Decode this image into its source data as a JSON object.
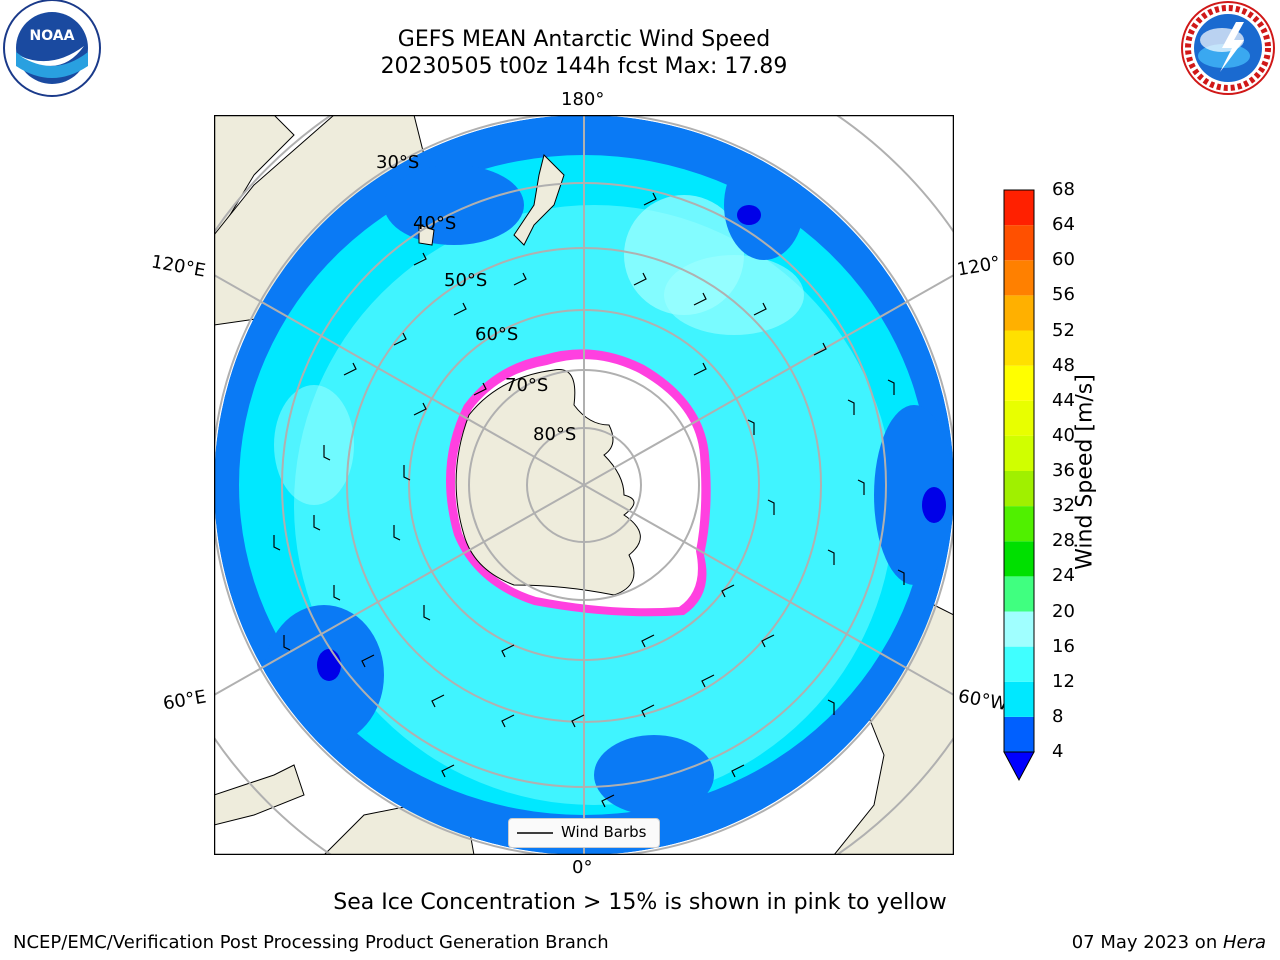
{
  "title": {
    "line1": "GEFS MEAN Antarctic Wind Speed",
    "line2": "20230505 t00z 144h fcst   Max: 17.89"
  },
  "map": {
    "projection": "south-polar-stereographic",
    "longitude_labels": {
      "top": "180°",
      "bottom": "0°",
      "left_upper": "120°E",
      "left_lower": "60°E",
      "right_upper": "120°",
      "right_lower": "60°W"
    },
    "latitude_labels": [
      "30°S",
      "40°S",
      "50°S",
      "60°S",
      "70°S",
      "80°S"
    ],
    "legend": {
      "label": "Wind Barbs"
    }
  },
  "colorbar": {
    "label": "Wind Speed [m/s]",
    "ticks": [
      "4",
      "8",
      "12",
      "16",
      "20",
      "24",
      "28",
      "32",
      "36",
      "40",
      "44",
      "48",
      "52",
      "56",
      "60",
      "64",
      "68"
    ],
    "colors": [
      "#0060ff",
      "#00e8ff",
      "#40ffff",
      "#a0ffff",
      "#40ff80",
      "#00e000",
      "#50f000",
      "#a0f000",
      "#d0ff00",
      "#e8ff00",
      "#ffff00",
      "#ffe000",
      "#ffb000",
      "#ff8000",
      "#ff5000",
      "#ff2000",
      "#ff0000"
    ],
    "extend_min_color": "#0000ff"
  },
  "caption": "Sea Ice Concentration > 15% is shown in pink to yellow",
  "footer": {
    "left": "NCEP/EMC/Verification Post Processing Product Generation Branch",
    "right_date": "07 May 2023 on ",
    "right_host": "Hera"
  },
  "logos": {
    "noaa": "NOAA",
    "nws": "NATIONAL WEATHER SERVICE"
  }
}
